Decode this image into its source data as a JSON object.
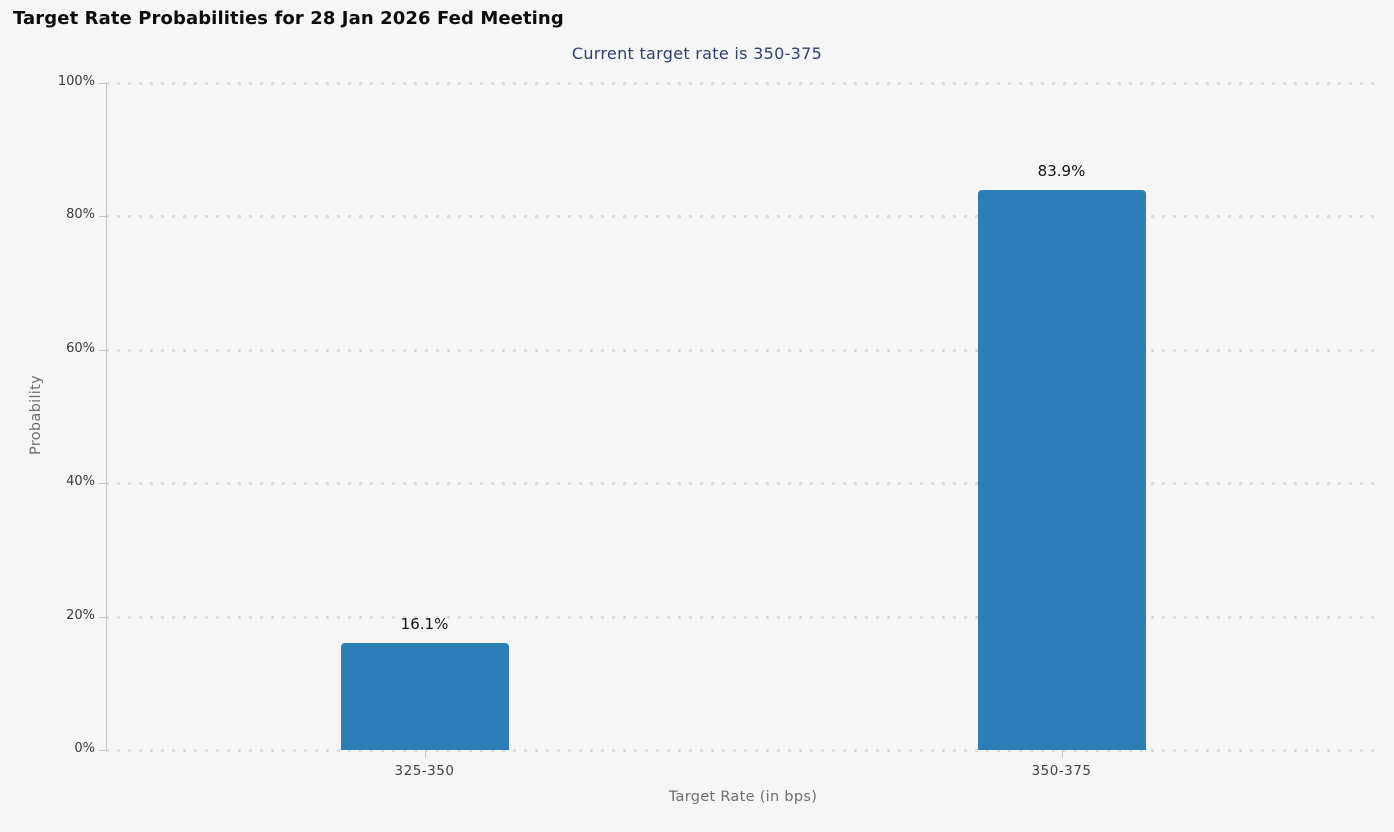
{
  "page": {
    "background_color": "#f6f6f6"
  },
  "chart_data": {
    "type": "bar",
    "title": "Target Rate Probabilities for 28 Jan 2026 Fed Meeting",
    "subtitle": "Current target rate is 350-375",
    "categories": [
      "325-350",
      "350-375"
    ],
    "values": [
      16.1,
      83.9
    ],
    "value_labels": [
      "16.1%",
      "83.9%"
    ],
    "xlabel": "Target Rate (in bps)",
    "ylabel": "Probability",
    "ylim": [
      0,
      100
    ],
    "yticks": [
      0,
      20,
      40,
      60,
      80,
      100
    ],
    "ytick_labels": [
      "0%",
      "20%",
      "40%",
      "60%",
      "80%",
      "100%"
    ],
    "grid": "dotted-horizontal",
    "legend_position": "none",
    "bar_color": "#2b7eb8",
    "colors": {
      "title": "#0c0c0c",
      "subtitle": "#32406e",
      "tick_label": "#3a3a3a",
      "axis_title": "#6e6e6e",
      "value_label": "#111111",
      "gridline": "#dcdcdc",
      "axis_line": "#c4c4c4"
    }
  }
}
